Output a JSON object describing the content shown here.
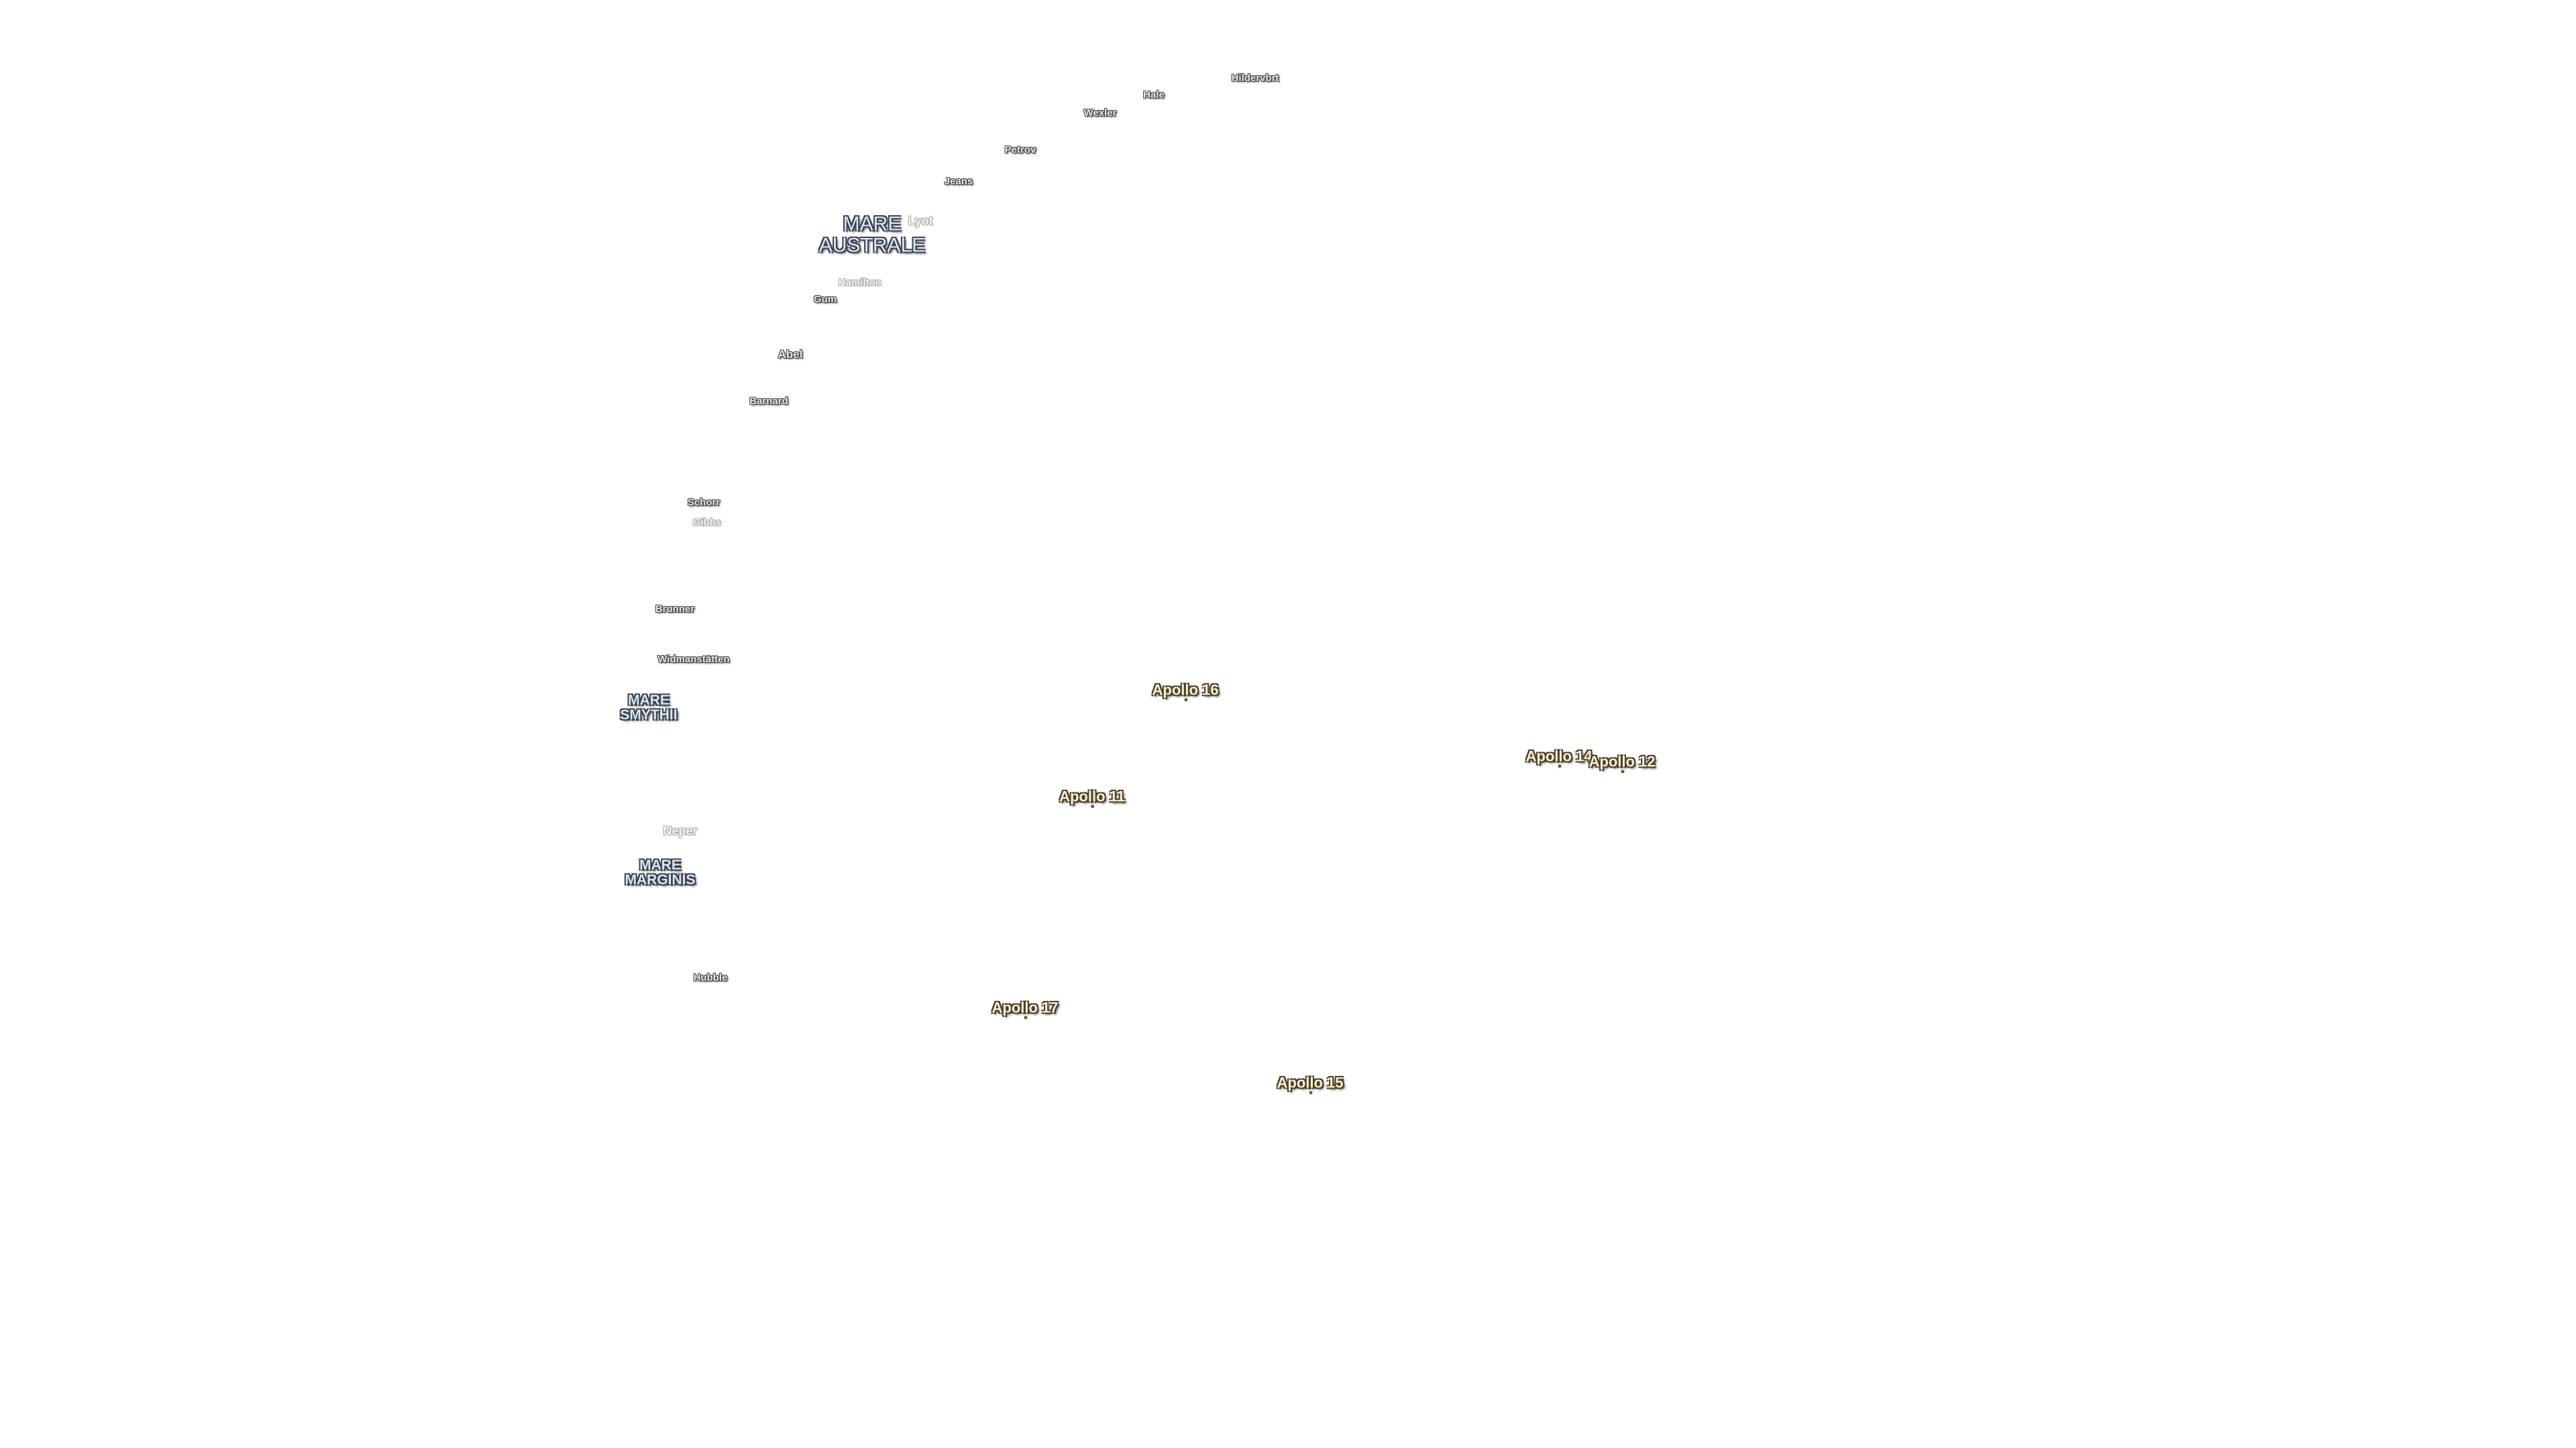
{
  "craters": [
    "Hildervbrt",
    "Hale",
    "Wexler",
    "Petrov",
    "Jeans",
    "Lyot",
    "Hamilton",
    "Gum",
    "Abel",
    "Barnard",
    "Schorr",
    "Gibbs",
    "Brunner",
    "Widmanstätten",
    "Neper",
    "Hubble"
  ],
  "maria": [
    [
      "MARE",
      "AUSTRALE"
    ],
    [
      "MARE",
      "SMYTHII"
    ],
    [
      "MARE",
      "MARGINIS"
    ]
  ],
  "landing_sites": [
    "Apollo 16",
    "Apollo 14",
    "Apollo 12",
    "Apollo 11",
    "Apollo 17",
    "Apollo 15"
  ]
}
